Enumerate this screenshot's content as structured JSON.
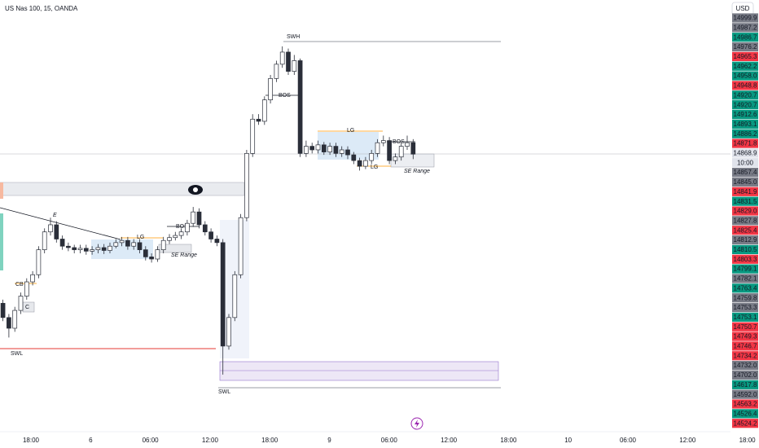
{
  "chart_data": {
    "type": "candlestick",
    "title": "US Nas 100, 15, OANDA",
    "currency": "USD",
    "ylim": [
      14480,
      15085
    ],
    "up_color": "#ffffff",
    "down_color": "#2a2e39",
    "open": [
      14660,
      14640,
      14625,
      14650,
      14670,
      14690,
      14700,
      14735,
      14760,
      14770,
      14750,
      14740,
      14738,
      14735,
      14737,
      14733,
      14735,
      14738,
      14734,
      14740,
      14745,
      14748,
      14740,
      14745,
      14735,
      14725,
      14722,
      14735,
      14748,
      14752,
      14755,
      14760,
      14772,
      14788,
      14770,
      14760,
      14750,
      14745,
      14600,
      14640,
      14700,
      14780,
      14870,
      14918,
      14915,
      14945,
      14975,
      14995,
      15012,
      14985,
      15000,
      14870,
      14880,
      14875,
      14882,
      14872,
      14880,
      14870,
      14875,
      14868,
      14860,
      14852,
      14860,
      14870,
      14885,
      14888,
      14860,
      14865,
      14880,
      14885
    ],
    "high": [
      14665,
      14645,
      14655,
      14675,
      14695,
      14705,
      14740,
      14765,
      14780,
      14775,
      14755,
      14745,
      14742,
      14742,
      14742,
      14740,
      14743,
      14743,
      14745,
      14750,
      14753,
      14753,
      14750,
      14750,
      14740,
      14730,
      14740,
      14753,
      14757,
      14760,
      14765,
      14777,
      14795,
      14793,
      14775,
      14765,
      14755,
      14750,
      14645,
      14705,
      14785,
      14875,
      14925,
      14925,
      14950,
      14980,
      15000,
      15020,
      15017,
      15008,
      15003,
      14888,
      14885,
      14888,
      14886,
      14885,
      14885,
      14880,
      14880,
      14872,
      14864,
      14865,
      14875,
      14890,
      14895,
      14893,
      14870,
      14885,
      14895,
      14890
    ],
    "low": [
      14635,
      14612,
      14620,
      14645,
      14665,
      14685,
      14695,
      14730,
      14755,
      14745,
      14735,
      14733,
      14730,
      14730,
      14728,
      14728,
      14730,
      14729,
      14730,
      14737,
      14740,
      14735,
      14735,
      14730,
      14720,
      14717,
      14718,
      14730,
      14743,
      14748,
      14750,
      14755,
      14767,
      14765,
      14755,
      14745,
      14740,
      14560,
      14595,
      14635,
      14695,
      14775,
      14865,
      14910,
      14910,
      14940,
      14970,
      14990,
      14980,
      14980,
      14865,
      14865,
      14870,
      14870,
      14868,
      14868,
      14865,
      14865,
      14862,
      14855,
      14846,
      14848,
      14855,
      14865,
      14880,
      14855,
      14855,
      14860,
      14875,
      14862
    ],
    "close": [
      14640,
      14625,
      14650,
      14670,
      14690,
      14700,
      14735,
      14760,
      14770,
      14750,
      14740,
      14738,
      14735,
      14737,
      14733,
      14735,
      14738,
      14734,
      14740,
      14745,
      14748,
      14740,
      14745,
      14735,
      14725,
      14722,
      14735,
      14748,
      14752,
      14755,
      14760,
      14772,
      14788,
      14770,
      14760,
      14750,
      14745,
      14600,
      14640,
      14700,
      14780,
      14870,
      14918,
      14915,
      14945,
      14975,
      14995,
      15012,
      14985,
      15000,
      14870,
      14880,
      14875,
      14882,
      14872,
      14880,
      14870,
      14875,
      14868,
      14860,
      14852,
      14860,
      14870,
      14885,
      14888,
      14860,
      14865,
      14880,
      14885,
      14869
    ],
    "time_labels": [
      "18:00",
      "6",
      "06:00",
      "12:00",
      "18:00",
      "9",
      "06:00",
      "12:00",
      "18:00",
      "10",
      "06:00",
      "12:00",
      "18:00"
    ],
    "price_labels": [
      {
        "value": 14999.9,
        "color": "#787b86"
      },
      {
        "value": 14987.2,
        "color": "#787b86"
      },
      {
        "value": 14986.7,
        "color": "#089981"
      },
      {
        "value": 14976.2,
        "color": "#787b86"
      },
      {
        "value": 14965.3,
        "color": "#f23645"
      },
      {
        "value": 14962.2,
        "color": "#089981"
      },
      {
        "value": 14958.0,
        "label": "14958.0",
        "color": "#089981"
      },
      {
        "value": 14948.8,
        "color": "#f23645"
      },
      {
        "value": 14920.7,
        "color": "#089981"
      },
      {
        "value": 14920.7,
        "color": "#089981"
      },
      {
        "value": 14912.6,
        "color": "#089981"
      },
      {
        "value": 14893.1,
        "color": "#089981"
      },
      {
        "value": 14886.2,
        "color": "#089981"
      },
      {
        "value": 14871.8,
        "color": "#f23645"
      },
      {
        "value": 14868.9,
        "color": "#e0e3eb"
      },
      {
        "label": "10:00",
        "color": "#e0e3eb"
      },
      {
        "value": 14857.4,
        "color": "#787b86"
      },
      {
        "value": 14845.0,
        "label": "14845.0",
        "color": "#787b86"
      },
      {
        "value": 14841.9,
        "color": "#f23645"
      },
      {
        "value": 14831.5,
        "color": "#089981"
      },
      {
        "value": 14829.0,
        "label": "14829.0",
        "color": "#f23645"
      },
      {
        "value": 14827.8,
        "color": "#787b86"
      },
      {
        "value": 14825.4,
        "color": "#f23645"
      },
      {
        "value": 14812.9,
        "color": "#787b86"
      },
      {
        "value": 14810.5,
        "color": "#089981"
      },
      {
        "value": 14803.3,
        "color": "#f23645"
      },
      {
        "value": 14799.1,
        "color": "#089981"
      },
      {
        "value": 14782.1,
        "color": "#787b86"
      },
      {
        "value": 14763.4,
        "color": "#089981"
      },
      {
        "value": 14759.8,
        "color": "#787b86"
      },
      {
        "value": 14753.3,
        "color": "#787b86"
      },
      {
        "value": 14753.1,
        "color": "#089981"
      },
      {
        "value": 14750.7,
        "color": "#f23645"
      },
      {
        "value": 14749.3,
        "color": "#f23645"
      },
      {
        "value": 14746.7,
        "color": "#f23645"
      },
      {
        "value": 14734.2,
        "color": "#f23645"
      },
      {
        "value": 14732.0,
        "label": "14732.0",
        "color": "#787b86"
      },
      {
        "value": 14702.0,
        "label": "14702.0",
        "color": "#787b86"
      },
      {
        "value": 14617.8,
        "color": "#089981"
      },
      {
        "value": 14592.0,
        "label": "14592.0",
        "color": "#787b86"
      },
      {
        "value": 14563.2,
        "color": "#f23645"
      },
      {
        "value": 14526.4,
        "color": "#089981"
      },
      {
        "value": 14524.2,
        "color": "#f23645"
      }
    ],
    "annotations": [
      "SWH",
      "BOS",
      "BOS",
      "BOS",
      "LG",
      "LG",
      "LG",
      "SE Range",
      "SE Range",
      "CB",
      "C",
      "E",
      "SWL",
      "SWL"
    ]
  }
}
